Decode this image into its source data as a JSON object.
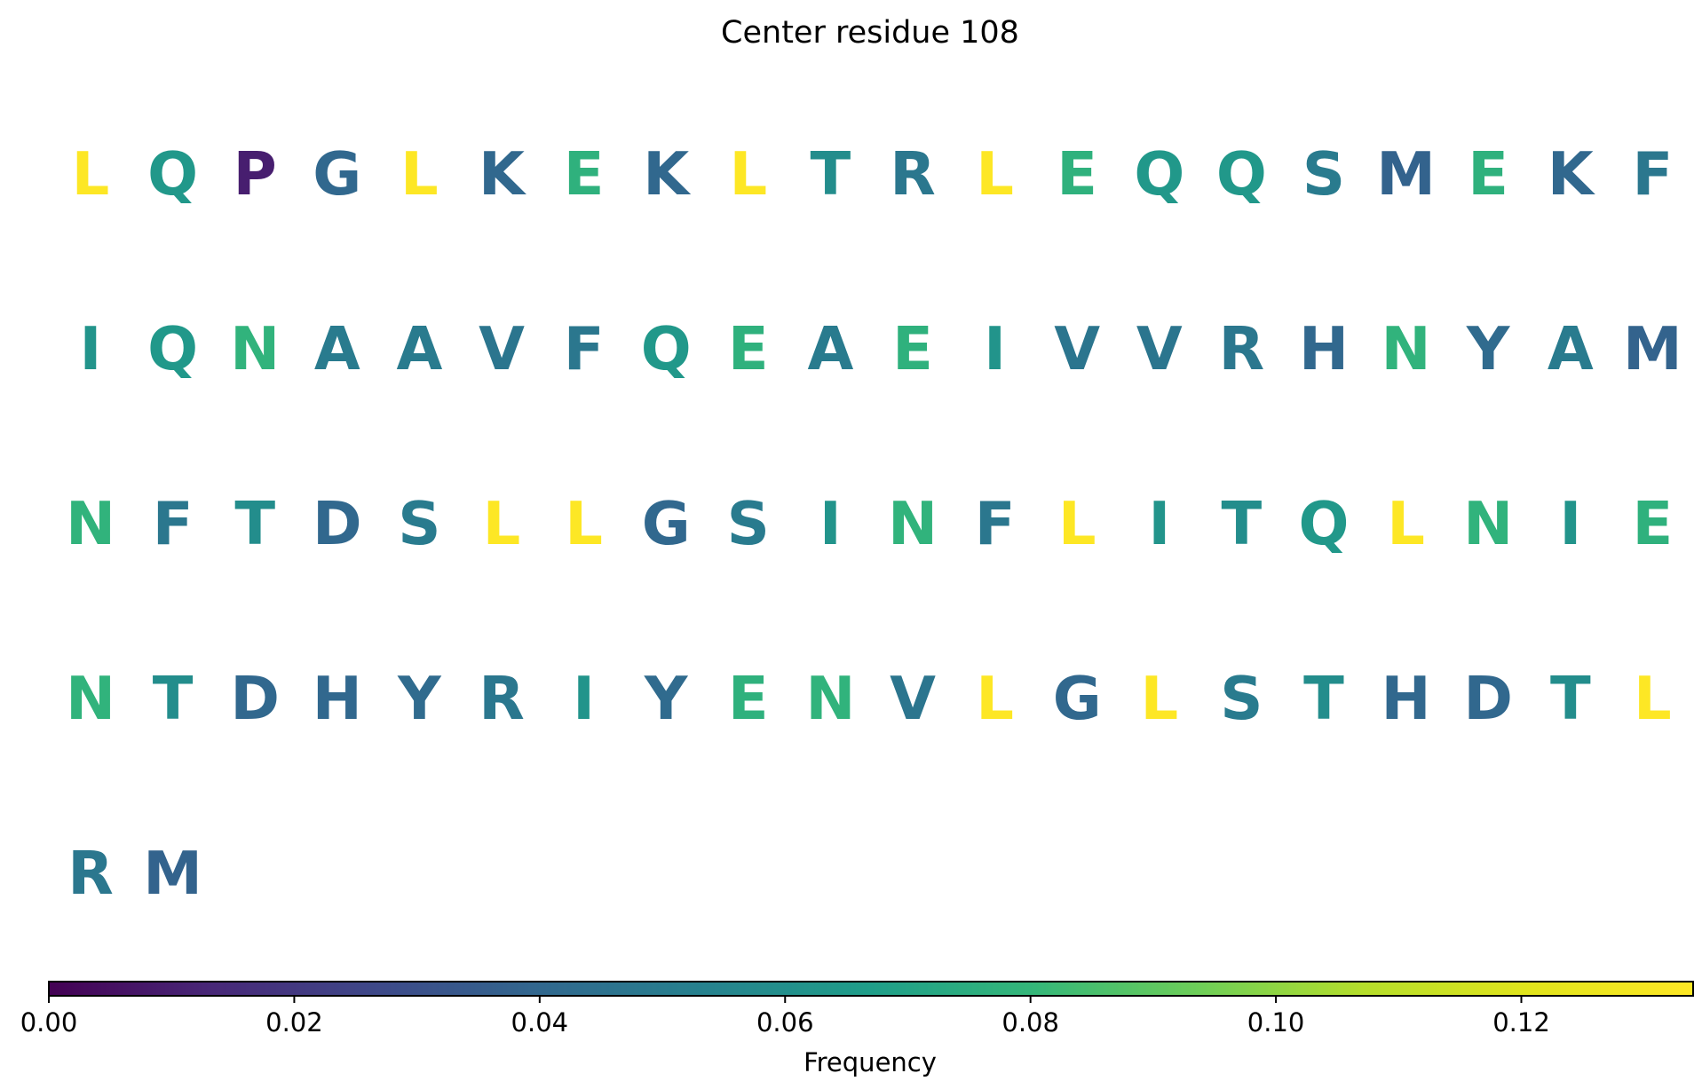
{
  "chart_data": {
    "type": "sequence-frequency-grid",
    "title": "Center residue 108",
    "colormap": "viridis",
    "columns_per_row": 20,
    "residues": [
      {
        "letter": "L",
        "frequency": 0.134
      },
      {
        "letter": "Q",
        "frequency": 0.064
      },
      {
        "letter": "P",
        "frequency": 0.01
      },
      {
        "letter": "G",
        "frequency": 0.04
      },
      {
        "letter": "L",
        "frequency": 0.134
      },
      {
        "letter": "K",
        "frequency": 0.04
      },
      {
        "letter": "E",
        "frequency": 0.077
      },
      {
        "letter": "K",
        "frequency": 0.04
      },
      {
        "letter": "L",
        "frequency": 0.134
      },
      {
        "letter": "T",
        "frequency": 0.059
      },
      {
        "letter": "R",
        "frequency": 0.048
      },
      {
        "letter": "L",
        "frequency": 0.134
      },
      {
        "letter": "E",
        "frequency": 0.077
      },
      {
        "letter": "Q",
        "frequency": 0.064
      },
      {
        "letter": "Q",
        "frequency": 0.064
      },
      {
        "letter": "S",
        "frequency": 0.05
      },
      {
        "letter": "M",
        "frequency": 0.038
      },
      {
        "letter": "E",
        "frequency": 0.077
      },
      {
        "letter": "K",
        "frequency": 0.04
      },
      {
        "letter": "F",
        "frequency": 0.048
      },
      {
        "letter": "I",
        "frequency": 0.062
      },
      {
        "letter": "Q",
        "frequency": 0.064
      },
      {
        "letter": "N",
        "frequency": 0.078
      },
      {
        "letter": "A",
        "frequency": 0.05
      },
      {
        "letter": "A",
        "frequency": 0.05
      },
      {
        "letter": "V",
        "frequency": 0.047
      },
      {
        "letter": "F",
        "frequency": 0.048
      },
      {
        "letter": "Q",
        "frequency": 0.064
      },
      {
        "letter": "E",
        "frequency": 0.077
      },
      {
        "letter": "A",
        "frequency": 0.05
      },
      {
        "letter": "E",
        "frequency": 0.077
      },
      {
        "letter": "I",
        "frequency": 0.062
      },
      {
        "letter": "V",
        "frequency": 0.047
      },
      {
        "letter": "V",
        "frequency": 0.047
      },
      {
        "letter": "R",
        "frequency": 0.048
      },
      {
        "letter": "H",
        "frequency": 0.04
      },
      {
        "letter": "N",
        "frequency": 0.078
      },
      {
        "letter": "Y",
        "frequency": 0.042
      },
      {
        "letter": "A",
        "frequency": 0.05
      },
      {
        "letter": "M",
        "frequency": 0.038
      },
      {
        "letter": "N",
        "frequency": 0.078
      },
      {
        "letter": "F",
        "frequency": 0.048
      },
      {
        "letter": "T",
        "frequency": 0.059
      },
      {
        "letter": "D",
        "frequency": 0.04
      },
      {
        "letter": "S",
        "frequency": 0.05
      },
      {
        "letter": "L",
        "frequency": 0.134
      },
      {
        "letter": "L",
        "frequency": 0.134
      },
      {
        "letter": "G",
        "frequency": 0.04
      },
      {
        "letter": "S",
        "frequency": 0.05
      },
      {
        "letter": "I",
        "frequency": 0.062
      },
      {
        "letter": "N",
        "frequency": 0.078
      },
      {
        "letter": "F",
        "frequency": 0.048
      },
      {
        "letter": "L",
        "frequency": 0.134
      },
      {
        "letter": "I",
        "frequency": 0.062
      },
      {
        "letter": "T",
        "frequency": 0.059
      },
      {
        "letter": "Q",
        "frequency": 0.064
      },
      {
        "letter": "L",
        "frequency": 0.134
      },
      {
        "letter": "N",
        "frequency": 0.078
      },
      {
        "letter": "I",
        "frequency": 0.062
      },
      {
        "letter": "E",
        "frequency": 0.077
      },
      {
        "letter": "N",
        "frequency": 0.078
      },
      {
        "letter": "T",
        "frequency": 0.059
      },
      {
        "letter": "D",
        "frequency": 0.04
      },
      {
        "letter": "H",
        "frequency": 0.04
      },
      {
        "letter": "Y",
        "frequency": 0.042
      },
      {
        "letter": "R",
        "frequency": 0.048
      },
      {
        "letter": "I",
        "frequency": 0.062
      },
      {
        "letter": "Y",
        "frequency": 0.042
      },
      {
        "letter": "E",
        "frequency": 0.077
      },
      {
        "letter": "N",
        "frequency": 0.078
      },
      {
        "letter": "V",
        "frequency": 0.047
      },
      {
        "letter": "L",
        "frequency": 0.134
      },
      {
        "letter": "G",
        "frequency": 0.04
      },
      {
        "letter": "L",
        "frequency": 0.134
      },
      {
        "letter": "S",
        "frequency": 0.05
      },
      {
        "letter": "T",
        "frequency": 0.059
      },
      {
        "letter": "H",
        "frequency": 0.04
      },
      {
        "letter": "D",
        "frequency": 0.04
      },
      {
        "letter": "T",
        "frequency": 0.059
      },
      {
        "letter": "L",
        "frequency": 0.134
      },
      {
        "letter": "R",
        "frequency": 0.048
      },
      {
        "letter": "M",
        "frequency": 0.038
      }
    ],
    "colorbar": {
      "label": "Frequency",
      "range": [
        0,
        0.134
      ],
      "ticks": [
        0.0,
        0.02,
        0.04,
        0.06,
        0.08,
        0.1,
        0.12
      ],
      "tick_labels": [
        "0.00",
        "0.02",
        "0.04",
        "0.06",
        "0.08",
        "0.10",
        "0.12"
      ],
      "orientation": "horizontal",
      "location": "bottom"
    }
  }
}
